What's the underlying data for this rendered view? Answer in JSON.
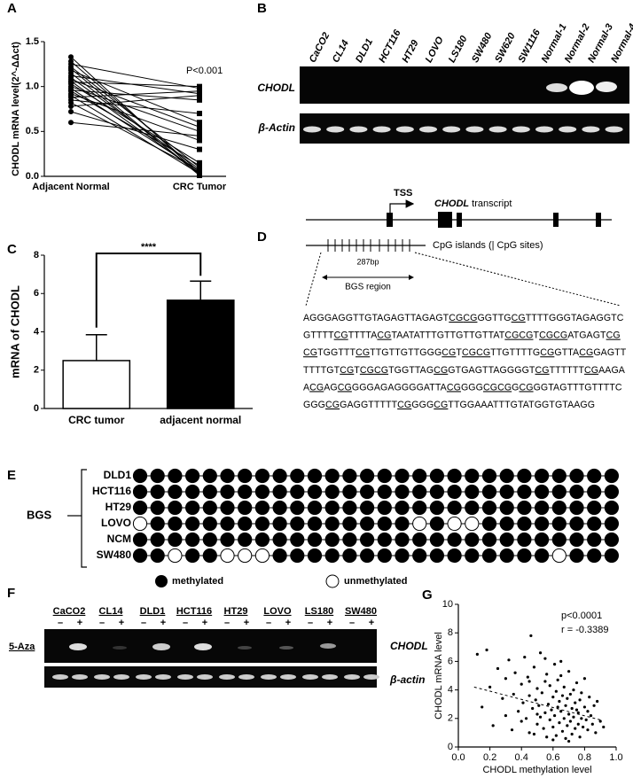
{
  "chart_data": [
    {
      "panel": "A",
      "type": "line",
      "annotation": "P<0.001",
      "ylabel": "CHODL mRNA level(2^-ΔΔct)",
      "categories": [
        "Adjacent Normal",
        "CRC Tumor"
      ],
      "color": "#000000",
      "ylim": [
        0,
        1.5
      ],
      "yticks": [
        {
          "value": 0,
          "label": "0.0"
        },
        {
          "value": 0.5,
          "label": "0.5"
        },
        {
          "value": 1,
          "label": "1.0"
        },
        {
          "value": 1.5,
          "label": "1.5"
        }
      ],
      "series": [
        {
          "values": [
            1.33,
            0.02
          ]
        },
        {
          "values": [
            1.28,
            0.05
          ]
        },
        {
          "values": [
            1.25,
            0.98
          ]
        },
        {
          "values": [
            1.22,
            0.1
          ]
        },
        {
          "values": [
            1.2,
            0.01
          ]
        },
        {
          "values": [
            1.18,
            0.6
          ]
        },
        {
          "values": [
            1.15,
            0.03
          ]
        },
        {
          "values": [
            1.12,
            0.92
          ]
        },
        {
          "values": [
            1.1,
            0.08
          ]
        },
        {
          "values": [
            1.08,
            0.55
          ]
        },
        {
          "values": [
            1.06,
            0.04
          ]
        },
        {
          "values": [
            1.05,
            1.0
          ]
        },
        {
          "values": [
            1.03,
            0.15
          ]
        },
        {
          "values": [
            1.0,
            0.5
          ]
        },
        {
          "values": [
            0.98,
            0.06
          ]
        },
        {
          "values": [
            0.96,
            0.85
          ]
        },
        {
          "values": [
            0.95,
            0.12
          ]
        },
        {
          "values": [
            0.92,
            0.4
          ]
        },
        {
          "values": [
            0.9,
            0.03
          ]
        },
        {
          "values": [
            0.88,
            0.95
          ]
        },
        {
          "values": [
            0.85,
            0.7
          ]
        },
        {
          "values": [
            0.82,
            0.07
          ]
        },
        {
          "values": [
            0.78,
            0.9
          ]
        },
        {
          "values": [
            0.72,
            0.3
          ]
        },
        {
          "values": [
            0.6,
            0.45
          ]
        }
      ]
    },
    {
      "panel": "C",
      "type": "bar",
      "annotation": "****",
      "ylabel": "mRNA of CHODL",
      "categories": [
        "CRC tumor",
        "adjacent normal"
      ],
      "values": [
        2.5,
        5.65
      ],
      "errors": [
        1.35,
        1.0
      ],
      "colors": [
        "#ffffff",
        "#000000"
      ],
      "ylim": [
        0,
        8
      ],
      "yticks": [
        0,
        2,
        4,
        6,
        8
      ]
    },
    {
      "panel": "G",
      "type": "scatter",
      "annotations": [
        "p<0.0001",
        "r = -0.3389"
      ],
      "xlabel": "CHODL methylation level",
      "ylabel": "CHODL mRNA level",
      "xlim": [
        0,
        1
      ],
      "xticks": [
        {
          "value": 0,
          "label": "0.0"
        },
        {
          "value": 0.2,
          "label": "0.2"
        },
        {
          "value": 0.4,
          "label": "0.4"
        },
        {
          "value": 0.6,
          "label": "0.6"
        },
        {
          "value": 0.8,
          "label": "0.8"
        },
        {
          "value": 1,
          "label": "1.0"
        }
      ],
      "ylim": [
        0,
        10
      ],
      "yticks": [
        0,
        2,
        4,
        6,
        8,
        10
      ],
      "color": "#000000",
      "trendline": {
        "x": [
          0.1,
          0.9
        ],
        "y": [
          4.2,
          1.9
        ]
      },
      "x": [
        0.12,
        0.15,
        0.18,
        0.2,
        0.22,
        0.25,
        0.28,
        0.3,
        0.3,
        0.32,
        0.34,
        0.35,
        0.36,
        0.38,
        0.4,
        0.4,
        0.41,
        0.42,
        0.43,
        0.44,
        0.45,
        0.45,
        0.46,
        0.47,
        0.48,
        0.48,
        0.49,
        0.5,
        0.5,
        0.51,
        0.52,
        0.52,
        0.53,
        0.54,
        0.55,
        0.55,
        0.56,
        0.56,
        0.57,
        0.58,
        0.58,
        0.59,
        0.6,
        0.6,
        0.61,
        0.61,
        0.62,
        0.62,
        0.63,
        0.63,
        0.64,
        0.64,
        0.65,
        0.65,
        0.66,
        0.66,
        0.67,
        0.67,
        0.68,
        0.68,
        0.69,
        0.69,
        0.7,
        0.7,
        0.71,
        0.71,
        0.72,
        0.72,
        0.73,
        0.73,
        0.74,
        0.74,
        0.75,
        0.75,
        0.76,
        0.76,
        0.77,
        0.77,
        0.78,
        0.78,
        0.79,
        0.8,
        0.8,
        0.81,
        0.82,
        0.82,
        0.83,
        0.84,
        0.85,
        0.86,
        0.87,
        0.88,
        0.9,
        0.92,
        0.55,
        0.6,
        0.65,
        0.7,
        0.5,
        0.45
      ],
      "values": [
        6.5,
        2.8,
        6.8,
        4.2,
        1.5,
        5.5,
        3.4,
        2.2,
        4.8,
        6.1,
        1.2,
        3.7,
        5.2,
        2.5,
        4.4,
        1.8,
        3.1,
        6.3,
        2.0,
        4.9,
        1.0,
        3.6,
        7.8,
        2.7,
        5.6,
        0.9,
        3.3,
        4.1,
        1.6,
        2.9,
        6.6,
        2.1,
        3.8,
        1.3,
        4.6,
        2.4,
        5.1,
        0.7,
        3.0,
        1.9,
        4.3,
        2.6,
        3.5,
        1.4,
        5.8,
        2.2,
        3.9,
        0.8,
        2.8,
        4.7,
        1.7,
        3.2,
        2.5,
        6.0,
        1.1,
        3.6,
        2.0,
        4.2,
        0.6,
        2.9,
        3.4,
        1.5,
        5.3,
        2.3,
        1.8,
        3.7,
        2.7,
        0.9,
        4.0,
        2.1,
        1.3,
        3.1,
        2.6,
        4.5,
        1.6,
        2.4,
        3.3,
        0.7,
        2.0,
        3.8,
        1.4,
        2.8,
        4.8,
        1.9,
        2.5,
        1.2,
        3.5,
        2.2,
        1.6,
        2.9,
        1.0,
        3.2,
        1.8,
        1.4,
        6.2,
        0.5,
        5.0,
        0.4,
        2.3,
        4.6
      ]
    }
  ],
  "gel_b": {
    "panel": "B",
    "lanes": [
      "CaCO2",
      "CL14",
      "DLD1",
      "HCT116",
      "HT29",
      "LOVO",
      "LS180",
      "SW480",
      "SW620",
      "SW1116",
      "Normal-1",
      "Normal-2",
      "Normal-3",
      "Normal-4"
    ],
    "rows": [
      "CHODL",
      "β-Actin"
    ]
  },
  "diagram_d": {
    "panel": "D",
    "tss": "TSS",
    "gene": "CHODL",
    "transcript": "transcript",
    "cpg": "CpG islands (| CpG sites)",
    "length": "287bp",
    "region": "BGS region",
    "sequence": [
      "AGGGAGGTTGTAGAGTTAGAGTCGCGGGTTGCGTTTTGGGTAGAGGTC",
      "GTTTTCGTTTTACGTAATATTTGTTGTTGTTATCGCGTCGCGATGAGTCG",
      "CGTGGTTTCGTTGTTGTTGGGCGTCGCGTTGTTTTGCGGTTACGGAGTT",
      "TTTTGTCGTCGCGTGGTTAGCGGTGAGTTAGGGGTCGTTTTTTCGAAGA",
      "ACGAGCGGGGAGAGGGGATTACGGGGCGCGGCGGGTAGTTTGTTTTC",
      "GGGCGGAGGTTTTTCGGGGCGTTGGAAATTTGTATGGTGTAAGG"
    ]
  },
  "bgs_e": {
    "panel": "E",
    "label": "BGS",
    "sites": 28,
    "legend": [
      "methylated",
      "unmethylated"
    ],
    "rows": [
      {
        "name": "DLD1",
        "unmethylated": []
      },
      {
        "name": "HCT116",
        "unmethylated": []
      },
      {
        "name": "HT29",
        "unmethylated": []
      },
      {
        "name": "LOVO",
        "unmethylated": [
          0,
          16,
          18,
          19
        ]
      },
      {
        "name": "NCM",
        "unmethylated": []
      },
      {
        "name": "SW480",
        "unmethylated": [
          2,
          5,
          6,
          7,
          24
        ]
      }
    ]
  },
  "gel_f": {
    "panel": "F",
    "treatment": "5-Aza",
    "lanes": [
      "CaCO2",
      "CL14",
      "DLD1",
      "HCT116",
      "HT29",
      "LOVO",
      "LS180",
      "SW480"
    ],
    "signs": [
      "–",
      "+"
    ],
    "rows": [
      "CHODL",
      "β-actin"
    ]
  }
}
